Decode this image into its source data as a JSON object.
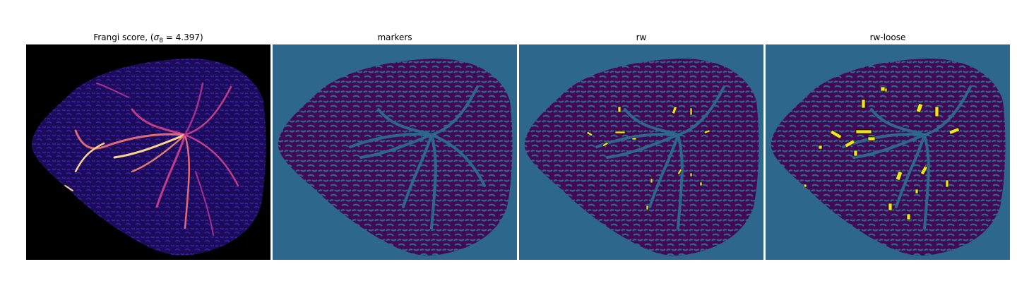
{
  "figure": {
    "panels": [
      {
        "id": "frangi",
        "title_prefix": "Frangi score, (",
        "title_symbol": "σ",
        "title_subscript": "8",
        "title_suffix": " = 4.397)"
      },
      {
        "id": "markers",
        "title": "markers"
      },
      {
        "id": "rw",
        "title": "rw"
      },
      {
        "id": "rw-loose",
        "title": "rw-loose"
      }
    ]
  },
  "colors": {
    "background_dark": "#000000",
    "frangi_tissue": "#1b0c5a",
    "frangi_vessel": "#c33c8a",
    "frangi_bright": "#fcd58a",
    "label_background": "#2d678b",
    "label_tissue": "#430856",
    "label_vessel": "#2d678b",
    "label_highlight": "#f1e51d"
  }
}
